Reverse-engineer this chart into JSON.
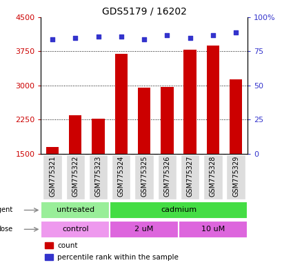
{
  "title": "GDS5179 / 16202",
  "samples": [
    "GSM775321",
    "GSM775322",
    "GSM775323",
    "GSM775324",
    "GSM775325",
    "GSM775326",
    "GSM775327",
    "GSM775328",
    "GSM775329"
  ],
  "counts": [
    1650,
    2350,
    2270,
    3700,
    2950,
    2960,
    3780,
    3870,
    3130
  ],
  "percentiles": [
    84,
    85,
    86,
    86,
    84,
    87,
    85,
    87,
    89
  ],
  "ylim_left": [
    1500,
    4500
  ],
  "ylim_right": [
    0,
    100
  ],
  "yticks_left": [
    1500,
    2250,
    3000,
    3750,
    4500
  ],
  "yticks_right": [
    0,
    25,
    50,
    75,
    100
  ],
  "bar_color": "#cc0000",
  "dot_color": "#3333cc",
  "agent_labels": [
    {
      "label": "untreated",
      "start": 0,
      "end": 3,
      "color": "#99ee99"
    },
    {
      "label": "cadmium",
      "start": 3,
      "end": 9,
      "color": "#44dd44"
    }
  ],
  "dose_labels": [
    {
      "label": "control",
      "start": 0,
      "end": 3,
      "color": "#ee99ee"
    },
    {
      "label": "2 uM",
      "start": 3,
      "end": 6,
      "color": "#dd66dd"
    },
    {
      "label": "10 uM",
      "start": 6,
      "end": 9,
      "color": "#dd66dd"
    }
  ],
  "legend_items": [
    {
      "color": "#cc0000",
      "label": "count"
    },
    {
      "color": "#3333cc",
      "label": "percentile rank within the sample"
    }
  ],
  "tick_label_color_left": "#cc0000",
  "tick_label_color_right": "#3333cc",
  "sample_box_color": "#dddddd",
  "title_fontsize": 10,
  "axis_fontsize": 8,
  "sample_fontsize": 7
}
